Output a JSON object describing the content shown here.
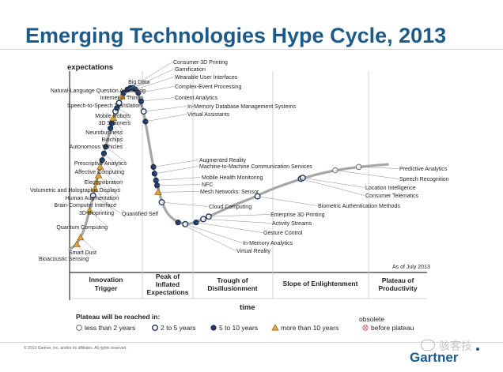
{
  "title": "Emerging Technologies Hype Cycle, 2013",
  "copyright": "© 2013 Gartner, Inc. and/or its affiliates. All rights reserved.",
  "logo": "Gartner",
  "watermark": "骇客技",
  "colors": {
    "title": "#1c5a8a",
    "curve": "#a6a6a6",
    "dark_dot": "#1f3864",
    "triangle": "#e2a33a",
    "light_dot": "#ffffff",
    "grid": "#c8c8c8"
  },
  "chart_data": {
    "type": "scatter",
    "title": "Emerging Technologies Hype Cycle, 2013",
    "ylabel": "expectations",
    "xlabel": "time",
    "as_of": "As of July 2013",
    "phases": [
      "Innovation Trigger",
      "Peak of Inflated Expectations",
      "Trough of Disillusionment",
      "Slope of Enlightenment",
      "Plateau of Productivity"
    ],
    "legend": {
      "title": "Plateau will be reached in:",
      "items": [
        {
          "key": "lt2",
          "label": "less than 2 years",
          "marker": "circle-light"
        },
        {
          "key": "2to5",
          "label": "2 to 5 years",
          "marker": "circle-mid"
        },
        {
          "key": "5to10",
          "label": "5 to 10 years",
          "marker": "circle-dark"
        },
        {
          "key": "gt10",
          "label": "more than 10 years",
          "marker": "triangle"
        },
        {
          "key": "obs",
          "label": "obsolete before plateau",
          "marker": "circle-x"
        }
      ]
    },
    "curve": [
      [
        0.0,
        0.02
      ],
      [
        0.02,
        0.05
      ],
      [
        0.04,
        0.13
      ],
      [
        0.055,
        0.25
      ],
      [
        0.07,
        0.38
      ],
      [
        0.085,
        0.51
      ],
      [
        0.1,
        0.63
      ],
      [
        0.115,
        0.75
      ],
      [
        0.13,
        0.85
      ],
      [
        0.145,
        0.93
      ],
      [
        0.16,
        0.97
      ],
      [
        0.175,
        0.98
      ],
      [
        0.19,
        0.95
      ],
      [
        0.205,
        0.84
      ],
      [
        0.22,
        0.65
      ],
      [
        0.235,
        0.47
      ],
      [
        0.25,
        0.34
      ],
      [
        0.265,
        0.25
      ],
      [
        0.28,
        0.21
      ],
      [
        0.3,
        0.18
      ],
      [
        0.32,
        0.17
      ],
      [
        0.34,
        0.175
      ],
      [
        0.37,
        0.2
      ],
      [
        0.41,
        0.24
      ],
      [
        0.45,
        0.28
      ],
      [
        0.5,
        0.32
      ],
      [
        0.55,
        0.37
      ],
      [
        0.6,
        0.41
      ],
      [
        0.65,
        0.445
      ],
      [
        0.7,
        0.475
      ],
      [
        0.75,
        0.495
      ],
      [
        0.8,
        0.51
      ],
      [
        0.85,
        0.52
      ],
      [
        0.88,
        0.525
      ]
    ],
    "technologies": [
      {
        "name": "Bioacoustic Sensing",
        "x": 0.02,
        "y": 0.05,
        "plateau": "gt10"
      },
      {
        "name": "Smart Dust",
        "x": 0.03,
        "y": 0.09,
        "plateau": "gt10"
      },
      {
        "name": "Quantum Computing",
        "x": 0.055,
        "y": 0.25,
        "plateau": "gt10"
      },
      {
        "name": "Quantified Self",
        "x": 0.065,
        "y": 0.34,
        "plateau": "2to5"
      },
      {
        "name": "3D Bioprinting",
        "x": 0.07,
        "y": 0.38,
        "plateau": "gt10"
      },
      {
        "name": "Brain-Computer Interface",
        "x": 0.075,
        "y": 0.42,
        "plateau": "gt10"
      },
      {
        "name": "Human Augmentation",
        "x": 0.08,
        "y": 0.46,
        "plateau": "gt10"
      },
      {
        "name": "Volumetric and Holographic Displays",
        "x": 0.085,
        "y": 0.51,
        "plateau": "gt10"
      },
      {
        "name": "Electrovibration",
        "x": 0.09,
        "y": 0.55,
        "plateau": "5to10"
      },
      {
        "name": "Affective Computing",
        "x": 0.095,
        "y": 0.59,
        "plateau": "5to10"
      },
      {
        "name": "Prescriptive Analytics",
        "x": 0.1,
        "y": 0.63,
        "plateau": "5to10"
      },
      {
        "name": "Autonomous Vehicles",
        "x": 0.113,
        "y": 0.74,
        "plateau": "5to10"
      },
      {
        "name": "Biochips",
        "x": 0.117,
        "y": 0.77,
        "plateau": "5to10"
      },
      {
        "name": "Neurobusiness",
        "x": 0.121,
        "y": 0.8,
        "plateau": "gt10"
      },
      {
        "name": "3D Scanners",
        "x": 0.127,
        "y": 0.84,
        "plateau": "2to5"
      },
      {
        "name": "Mobile Robots",
        "x": 0.131,
        "y": 0.86,
        "plateau": "5to10"
      },
      {
        "name": "Speech-to-Speech Translation",
        "x": 0.137,
        "y": 0.89,
        "plateau": "2to5"
      },
      {
        "name": "Internet of Things",
        "x": 0.144,
        "y": 0.93,
        "plateau": "gt10"
      },
      {
        "name": "Natural-Language Question Answering",
        "x": 0.149,
        "y": 0.95,
        "plateau": "5to10"
      },
      {
        "name": "Big Data",
        "x": 0.16,
        "y": 0.97,
        "plateau": "5to10"
      },
      {
        "name": "Consumer 3D Printing",
        "x": 0.168,
        "y": 0.98,
        "plateau": "5to10"
      },
      {
        "name": "Gamification",
        "x": 0.175,
        "y": 0.98,
        "plateau": "5to10"
      },
      {
        "name": "Wearable User Interfaces",
        "x": 0.182,
        "y": 0.97,
        "plateau": "5to10"
      },
      {
        "name": "Complex-Event Processing",
        "x": 0.19,
        "y": 0.95,
        "plateau": "5to10"
      },
      {
        "name": "Content Analytics",
        "x": 0.198,
        "y": 0.9,
        "plateau": "5to10"
      },
      {
        "name": "In-Memory Database Management Systems",
        "x": 0.205,
        "y": 0.84,
        "plateau": "2to5"
      },
      {
        "name": "Virtual Assistants",
        "x": 0.21,
        "y": 0.78,
        "plateau": "5to10"
      },
      {
        "name": "Augmented Reality",
        "x": 0.232,
        "y": 0.51,
        "plateau": "5to10"
      },
      {
        "name": "Machine-to-Machine Communication Services",
        "x": 0.235,
        "y": 0.47,
        "plateau": "5to10"
      },
      {
        "name": "Mobile Health Monitoring",
        "x": 0.239,
        "y": 0.43,
        "plateau": "5to10"
      },
      {
        "name": "NFC",
        "x": 0.242,
        "y": 0.4,
        "plateau": "5to10"
      },
      {
        "name": "Mesh Networks: Sensor",
        "x": 0.245,
        "y": 0.36,
        "plateau": "gt10"
      },
      {
        "name": "Cloud Computing",
        "x": 0.255,
        "y": 0.3,
        "plateau": "2to5"
      },
      {
        "name": "Virtual Reality",
        "x": 0.3,
        "y": 0.18,
        "plateau": "5to10"
      },
      {
        "name": "In-Memory Analytics",
        "x": 0.32,
        "y": 0.17,
        "plateau": "2to5"
      },
      {
        "name": "Gesture Control",
        "x": 0.35,
        "y": 0.18,
        "plateau": "5to10"
      },
      {
        "name": "Activity Streams",
        "x": 0.37,
        "y": 0.2,
        "plateau": "2to5"
      },
      {
        "name": "Enterprise 3D Printing",
        "x": 0.385,
        "y": 0.215,
        "plateau": "2to5"
      },
      {
        "name": "Biometric Authentication Methods",
        "x": 0.52,
        "y": 0.335,
        "plateau": "2to5"
      },
      {
        "name": "Consumer Telematics",
        "x": 0.64,
        "y": 0.44,
        "plateau": "2to5"
      },
      {
        "name": "Location Intelligence",
        "x": 0.645,
        "y": 0.445,
        "plateau": "2to5"
      },
      {
        "name": "Speech Recognition",
        "x": 0.735,
        "y": 0.49,
        "plateau": "lt2"
      },
      {
        "name": "Predictive Analytics",
        "x": 0.8,
        "y": 0.51,
        "plateau": "lt2"
      }
    ]
  }
}
